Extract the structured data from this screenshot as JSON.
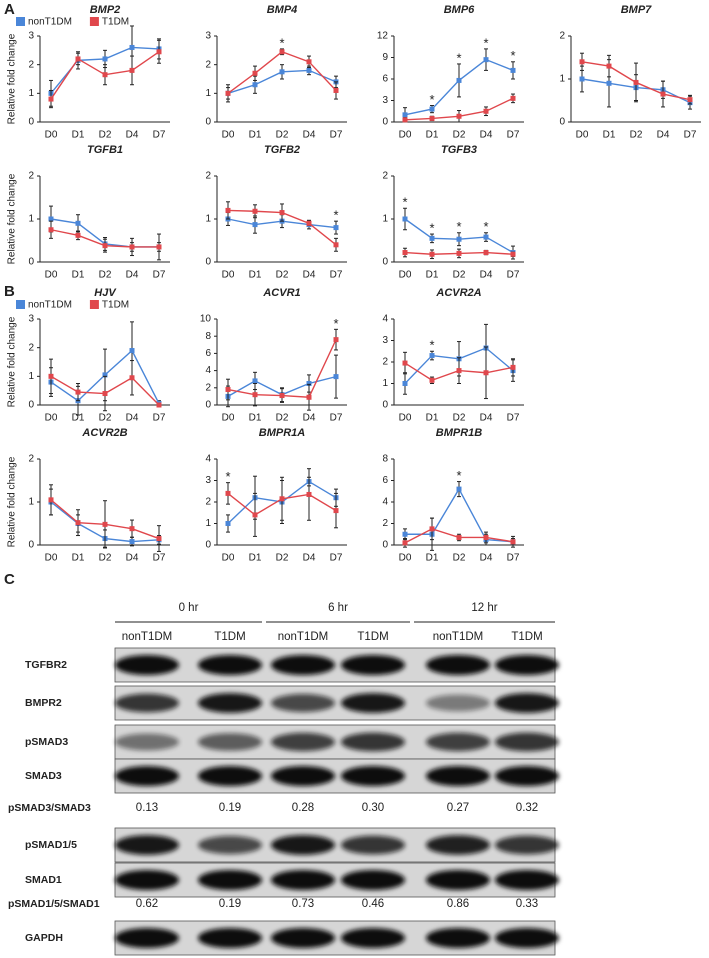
{
  "panels": [
    "A",
    "B",
    "C"
  ],
  "chart_data": [
    {
      "type": "line",
      "title": "BMP2",
      "ylabel": "Relative fold change",
      "legend": true,
      "categories": [
        "D0",
        "D1",
        "D2",
        "D4",
        "D7"
      ],
      "ylim": [
        0,
        3
      ],
      "yticks": [
        0,
        1,
        2,
        3
      ],
      "series": [
        {
          "name": "nonT1DM",
          "color": "#4a86d8",
          "values": [
            1.0,
            2.15,
            2.2,
            2.6,
            2.55
          ],
          "errors": [
            0.45,
            0.3,
            0.3,
            0.75,
            0.35
          ]
        },
        {
          "name": "T1DM",
          "color": "#e0474c",
          "values": [
            0.8,
            2.2,
            1.65,
            1.8,
            2.45
          ],
          "errors": [
            0.3,
            0.2,
            0.35,
            0.5,
            0.4
          ]
        }
      ]
    },
    {
      "type": "line",
      "title": "BMP4",
      "categories": [
        "D0",
        "D1",
        "D2",
        "D4",
        "D7"
      ],
      "ylim": [
        0,
        3
      ],
      "yticks": [
        0,
        1,
        2,
        3
      ],
      "series": [
        {
          "color": "#4a86d8",
          "values": [
            1.0,
            1.3,
            1.75,
            1.8,
            1.4
          ],
          "errors": [
            0.2,
            0.3,
            0.25,
            0.15,
            0.2
          ]
        },
        {
          "color": "#e0474c",
          "values": [
            1.0,
            1.7,
            2.45,
            2.1,
            1.1
          ],
          "errors": [
            0.3,
            0.25,
            0.1,
            0.2,
            0.3
          ]
        }
      ],
      "annotations": [
        {
          "x": "D2",
          "text": "*"
        }
      ]
    },
    {
      "type": "line",
      "title": "BMP6",
      "categories": [
        "D0",
        "D1",
        "D2",
        "D4",
        "D7"
      ],
      "ylim": [
        0,
        12
      ],
      "yticks": [
        0,
        3,
        6,
        9,
        12
      ],
      "series": [
        {
          "color": "#4a86d8",
          "values": [
            1.0,
            1.8,
            5.8,
            8.7,
            7.2
          ],
          "errors": [
            1.0,
            0.5,
            2.3,
            1.5,
            1.2
          ]
        },
        {
          "color": "#e0474c",
          "values": [
            0.3,
            0.5,
            0.8,
            1.5,
            3.3
          ],
          "errors": [
            0.3,
            0.3,
            0.8,
            0.6,
            0.6
          ]
        }
      ],
      "annotations": [
        {
          "x": "D1",
          "text": "*"
        },
        {
          "x": "D2",
          "text": "*"
        },
        {
          "x": "D4",
          "text": "*"
        },
        {
          "x": "D7",
          "text": "*"
        }
      ]
    },
    {
      "type": "line",
      "title": "BMP7",
      "categories": [
        "D0",
        "D1",
        "D2",
        "D4",
        "D7"
      ],
      "ylim": [
        0,
        2
      ],
      "yticks": [
        0,
        1,
        2
      ],
      "series": [
        {
          "color": "#4a86d8",
          "values": [
            1.0,
            0.9,
            0.8,
            0.75,
            0.45
          ],
          "errors": [
            0.3,
            0.55,
            0.3,
            0.2,
            0.15
          ]
        },
        {
          "color": "#e0474c",
          "values": [
            1.4,
            1.3,
            0.92,
            0.65,
            0.52
          ],
          "errors": [
            0.2,
            0.25,
            0.45,
            0.3,
            0.1
          ]
        }
      ]
    },
    {
      "type": "line",
      "title": "TGFB1",
      "ylabel": "Relative fold change",
      "categories": [
        "D0",
        "D1",
        "D2",
        "D4",
        "D7"
      ],
      "ylim": [
        0,
        2
      ],
      "yticks": [
        0,
        1,
        2
      ],
      "series": [
        {
          "color": "#4a86d8",
          "values": [
            1.0,
            0.9,
            0.42,
            0.35,
            0.35
          ],
          "errors": [
            0.3,
            0.2,
            0.15,
            0.2,
            0.3
          ]
        },
        {
          "color": "#e0474c",
          "values": [
            0.75,
            0.62,
            0.38,
            0.35,
            0.35
          ],
          "errors": [
            0.2,
            0.1,
            0.15,
            0.1,
            0.1
          ]
        }
      ]
    },
    {
      "type": "line",
      "title": "TGFB2",
      "categories": [
        "D0",
        "D1",
        "D2",
        "D4",
        "D7"
      ],
      "ylim": [
        0,
        2
      ],
      "yticks": [
        0,
        1,
        2
      ],
      "series": [
        {
          "color": "#4a86d8",
          "values": [
            1.0,
            0.87,
            0.95,
            0.87,
            0.8
          ],
          "errors": [
            0.15,
            0.2,
            0.15,
            0.1,
            0.15
          ]
        },
        {
          "color": "#e0474c",
          "values": [
            1.2,
            1.18,
            1.15,
            0.9,
            0.4
          ],
          "errors": [
            0.2,
            0.15,
            0.2,
            0.05,
            0.15
          ]
        }
      ],
      "annotations": [
        {
          "x": "D7",
          "text": "*"
        }
      ]
    },
    {
      "type": "line",
      "title": "TGFB3",
      "categories": [
        "D0",
        "D1",
        "D2",
        "D4",
        "D7"
      ],
      "ylim": [
        0,
        2
      ],
      "yticks": [
        0,
        1,
        2
      ],
      "series": [
        {
          "color": "#4a86d8",
          "values": [
            1.0,
            0.55,
            0.53,
            0.58,
            0.22
          ],
          "errors": [
            0.25,
            0.1,
            0.15,
            0.1,
            0.15
          ]
        },
        {
          "color": "#e0474c",
          "values": [
            0.22,
            0.18,
            0.2,
            0.22,
            0.18
          ],
          "errors": [
            0.1,
            0.1,
            0.1,
            0.05,
            0.05
          ]
        }
      ],
      "annotations": [
        {
          "x": "D0",
          "text": "*"
        },
        {
          "x": "D1",
          "text": "*"
        },
        {
          "x": "D2",
          "text": "*"
        },
        {
          "x": "D4",
          "text": "*"
        }
      ]
    },
    {
      "type": "line",
      "title": "HJV",
      "ylabel": "Relative fold change",
      "legend": true,
      "categories": [
        "D0",
        "D1",
        "D2",
        "D4",
        "D7"
      ],
      "ylim": [
        0,
        3
      ],
      "yticks": [
        0,
        1,
        2,
        3
      ],
      "series": [
        {
          "name": "nonT1DM",
          "color": "#4a86d8",
          "values": [
            0.8,
            0.15,
            1.05,
            1.9,
            0.05
          ],
          "errors": [
            0.5,
            0.5,
            0.9,
            1.0,
            0.1
          ]
        },
        {
          "name": "T1DM",
          "color": "#e0474c",
          "values": [
            1.0,
            0.45,
            0.4,
            0.95,
            0.0
          ],
          "errors": [
            0.6,
            0.3,
            0.6,
            0.6,
            0.05
          ]
        }
      ]
    },
    {
      "type": "line",
      "title": "ACVR1",
      "categories": [
        "D0",
        "D1",
        "D2",
        "D4",
        "D7"
      ],
      "ylim": [
        0,
        10
      ],
      "yticks": [
        0,
        2,
        4,
        6,
        8,
        10
      ],
      "series": [
        {
          "color": "#4a86d8",
          "values": [
            1.0,
            2.8,
            1.2,
            2.5,
            3.3
          ],
          "errors": [
            1.2,
            1.0,
            0.8,
            1.0,
            2.5
          ]
        },
        {
          "color": "#e0474c",
          "values": [
            1.8,
            1.2,
            1.1,
            0.9,
            7.6
          ],
          "errors": [
            1.2,
            1.3,
            0.8,
            1.5,
            1.2
          ]
        }
      ],
      "annotations": [
        {
          "x": "D7",
          "text": "*"
        }
      ]
    },
    {
      "type": "line",
      "title": "ACVR2A",
      "categories": [
        "D0",
        "D1",
        "D2",
        "D4",
        "D7"
      ],
      "ylim": [
        0,
        4
      ],
      "yticks": [
        0,
        1,
        2,
        3,
        4
      ],
      "series": [
        {
          "color": "#4a86d8",
          "values": [
            1.0,
            2.3,
            2.15,
            2.65,
            1.6
          ],
          "errors": [
            0.5,
            0.2,
            0.8,
            1.1,
            0.5
          ]
        },
        {
          "color": "#e0474c",
          "values": [
            1.95,
            1.15,
            1.6,
            1.5,
            1.75
          ],
          "errors": [
            0.5,
            0.15,
            0.6,
            1.2,
            0.4
          ]
        }
      ],
      "annotations": [
        {
          "x": "D1",
          "text": "*"
        }
      ]
    },
    {
      "type": "line",
      "title": "ACVR2B",
      "ylabel": "Relative fold change",
      "categories": [
        "D0",
        "D1",
        "D2",
        "D4",
        "D7"
      ],
      "ylim": [
        0,
        2
      ],
      "yticks": [
        0,
        1,
        2
      ],
      "series": [
        {
          "color": "#4a86d8",
          "values": [
            1.0,
            0.5,
            0.15,
            0.08,
            0.12
          ],
          "errors": [
            0.3,
            0.2,
            0.2,
            0.1,
            0.1
          ]
        },
        {
          "color": "#e0474c",
          "values": [
            1.05,
            0.52,
            0.48,
            0.38,
            0.15
          ],
          "errors": [
            0.35,
            0.3,
            0.55,
            0.2,
            0.3
          ]
        }
      ]
    },
    {
      "type": "line",
      "title": "BMPR1A",
      "categories": [
        "D0",
        "D1",
        "D2",
        "D4",
        "D7"
      ],
      "ylim": [
        0,
        4
      ],
      "yticks": [
        0,
        1,
        2,
        3,
        4
      ],
      "series": [
        {
          "color": "#4a86d8",
          "values": [
            1.0,
            2.2,
            2.0,
            2.95,
            2.2
          ],
          "errors": [
            0.4,
            1.0,
            1.0,
            0.2,
            0.4
          ]
        },
        {
          "color": "#e0474c",
          "values": [
            2.4,
            1.4,
            2.15,
            2.35,
            1.6
          ],
          "errors": [
            0.5,
            1.0,
            1.0,
            1.2,
            0.8
          ]
        }
      ],
      "annotations": [
        {
          "x": "D0",
          "text": "*"
        }
      ]
    },
    {
      "type": "line",
      "title": "BMPR1B",
      "categories": [
        "D0",
        "D1",
        "D2",
        "D4",
        "D7"
      ],
      "ylim": [
        0,
        8
      ],
      "yticks": [
        0,
        2,
        4,
        6,
        8
      ],
      "series": [
        {
          "color": "#4a86d8",
          "values": [
            1.0,
            1.0,
            5.2,
            0.5,
            0.3
          ],
          "errors": [
            0.5,
            1.5,
            0.7,
            0.5,
            0.5
          ]
        },
        {
          "color": "#e0474c",
          "values": [
            0.2,
            1.5,
            0.7,
            0.7,
            0.3
          ],
          "errors": [
            0.4,
            1.0,
            0.3,
            0.5,
            0.3
          ]
        }
      ],
      "annotations": [
        {
          "x": "D2",
          "text": "*"
        }
      ]
    }
  ],
  "blot": {
    "groups": [
      "0 hr",
      "6 hr",
      "12 hr"
    ],
    "lanes": [
      "nonT1DM",
      "T1DM",
      "nonT1DM",
      "T1DM",
      "nonT1DM",
      "T1DM"
    ],
    "rows": [
      {
        "label": "TGFBR2"
      },
      {
        "label": "BMPR2"
      },
      {
        "label": "pSMAD3"
      },
      {
        "label": "SMAD3"
      },
      {
        "label": "pSMAD3/SMAD3",
        "ratios": [
          "0.13",
          "0.19",
          "0.28",
          "0.30",
          "0.27",
          "0.32"
        ]
      },
      {
        "label": "pSMAD1/5"
      },
      {
        "label": "SMAD1"
      },
      {
        "label": "pSMAD1/5/SMAD1",
        "ratios": [
          "0.62",
          "0.19",
          "0.73",
          "0.46",
          "0.86",
          "0.33"
        ]
      },
      {
        "label": "GAPDH"
      }
    ]
  }
}
